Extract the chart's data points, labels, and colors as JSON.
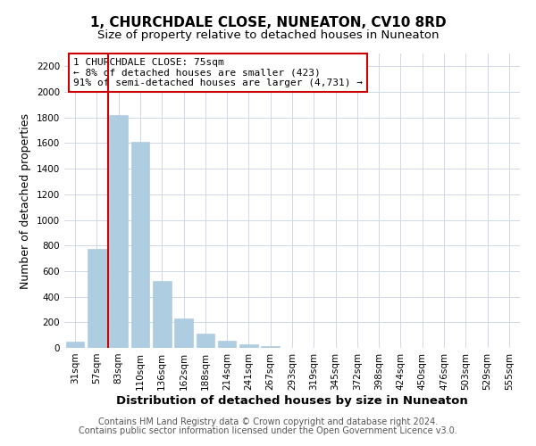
{
  "title": "1, CHURCHDALE CLOSE, NUNEATON, CV10 8RD",
  "subtitle": "Size of property relative to detached houses in Nuneaton",
  "xlabel": "Distribution of detached houses by size in Nuneaton",
  "ylabel": "Number of detached properties",
  "bar_labels": [
    "31sqm",
    "57sqm",
    "83sqm",
    "110sqm",
    "136sqm",
    "162sqm",
    "188sqm",
    "214sqm",
    "241sqm",
    "267sqm",
    "293sqm",
    "319sqm",
    "345sqm",
    "372sqm",
    "398sqm",
    "424sqm",
    "450sqm",
    "476sqm",
    "503sqm",
    "529sqm",
    "555sqm"
  ],
  "bar_values": [
    50,
    775,
    1820,
    1610,
    520,
    230,
    110,
    57,
    30,
    15,
    0,
    0,
    0,
    0,
    0,
    0,
    0,
    0,
    0,
    0,
    0
  ],
  "bar_color": "#aecde1",
  "vline_color": "#cc0000",
  "annotation_title": "1 CHURCHDALE CLOSE: 75sqm",
  "annotation_line1": "← 8% of detached houses are smaller (423)",
  "annotation_line2": "91% of semi-detached houses are larger (4,731) →",
  "annotation_box_color": "#ffffff",
  "annotation_box_edge": "#cc0000",
  "ylim": [
    0,
    2300
  ],
  "yticks": [
    0,
    200,
    400,
    600,
    800,
    1000,
    1200,
    1400,
    1600,
    1800,
    2000,
    2200
  ],
  "footer1": "Contains HM Land Registry data © Crown copyright and database right 2024.",
  "footer2": "Contains public sector information licensed under the Open Government Licence v3.0.",
  "title_fontsize": 11,
  "subtitle_fontsize": 9.5,
  "xlabel_fontsize": 9.5,
  "ylabel_fontsize": 9,
  "tick_fontsize": 7.5,
  "ann_fontsize": 8,
  "footer_fontsize": 7,
  "background_color": "#ffffff",
  "grid_color": "#d0d8e8"
}
